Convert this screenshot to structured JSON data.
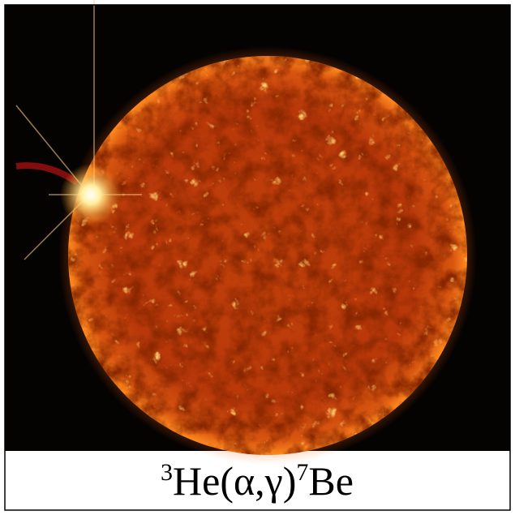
{
  "caption": {
    "mass_a": "3",
    "element_a": "He",
    "reaction": "(α,γ)",
    "mass_b": "7",
    "element_b": "Be"
  }
}
